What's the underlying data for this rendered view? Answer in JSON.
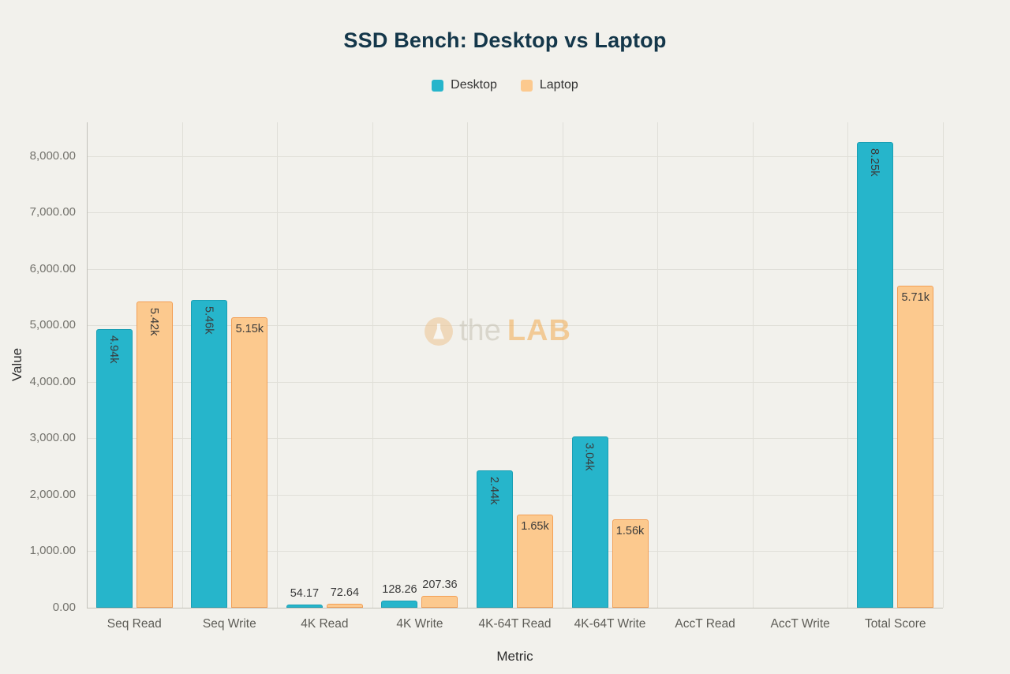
{
  "title": "SSD Bench: Desktop vs Laptop",
  "watermark": {
    "prefix": "the",
    "suffix": "LAB"
  },
  "chart_data": {
    "type": "bar",
    "title": "SSD Bench: Desktop vs Laptop",
    "xlabel": "Metric",
    "ylabel": "Value",
    "categories": [
      "Seq Read",
      "Seq Write",
      "4K Read",
      "4K Write",
      "4K-64T Read",
      "4K-64T Write",
      "AccT Read",
      "AccT Write",
      "Total Score"
    ],
    "series": [
      {
        "name": "Desktop",
        "color": "#26b5cb",
        "border_color": "#1a9fb4",
        "values": [
          4940,
          5460,
          54.17,
          128.26,
          2440,
          3040,
          0,
          0,
          8250
        ],
        "labels": [
          {
            "text": "4.94k",
            "rotate": true,
            "pos": "inside"
          },
          {
            "text": "5.46k",
            "rotate": true,
            "pos": "inside"
          },
          {
            "text": "54.17",
            "rotate": false,
            "pos": "above"
          },
          {
            "text": "128.26",
            "rotate": false,
            "pos": "above"
          },
          {
            "text": "2.44k",
            "rotate": true,
            "pos": "inside"
          },
          {
            "text": "3.04k",
            "rotate": true,
            "pos": "inside"
          },
          null,
          null,
          {
            "text": "8.25k",
            "rotate": true,
            "pos": "inside"
          }
        ]
      },
      {
        "name": "Laptop",
        "color": "#fcc98e",
        "border_color": "#f39f54",
        "values": [
          5420,
          5150,
          72.64,
          207.36,
          1650,
          1560,
          0,
          0,
          5710
        ],
        "labels": [
          {
            "text": "5.42k",
            "rotate": true,
            "pos": "inside"
          },
          {
            "text": "5.15k",
            "rotate": false,
            "pos": "inside"
          },
          {
            "text": "72.64",
            "rotate": false,
            "pos": "above"
          },
          {
            "text": "207.36",
            "rotate": false,
            "pos": "above"
          },
          {
            "text": "1.65k",
            "rotate": false,
            "pos": "inside"
          },
          {
            "text": "1.56k",
            "rotate": false,
            "pos": "inside"
          },
          null,
          null,
          {
            "text": "5.71k",
            "rotate": false,
            "pos": "inside"
          }
        ]
      }
    ],
    "y_ticks": [
      "0.00",
      "1,000.00",
      "2,000.00",
      "3,000.00",
      "4,000.00",
      "5,000.00",
      "6,000.00",
      "7,000.00",
      "8,000.00"
    ],
    "y_tick_values": [
      0,
      1000,
      2000,
      3000,
      4000,
      5000,
      6000,
      7000,
      8000
    ],
    "y_max": 8600,
    "grid": true,
    "legend_position": "top"
  }
}
